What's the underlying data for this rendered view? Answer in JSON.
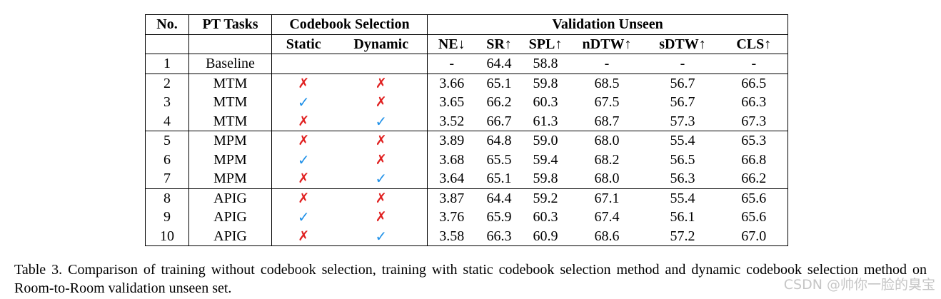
{
  "table": {
    "headers": {
      "no": "No.",
      "pt_tasks": "PT Tasks",
      "codebook_selection": "Codebook Selection",
      "validation_unseen": "Validation Unseen",
      "static": "Static",
      "dynamic": "Dynamic",
      "metrics": [
        "NE↓",
        "SR↑",
        "SPL↑",
        "nDTW↑",
        "sDTW↑",
        "CLS↑"
      ]
    },
    "rows": [
      {
        "no": "1",
        "task": "Baseline",
        "static": "",
        "dynamic": "",
        "ne": "-",
        "sr": "64.4",
        "spl": "58.8",
        "ndtw": "-",
        "sdtw": "-",
        "cls": "-"
      },
      {
        "no": "2",
        "task": "MTM",
        "static": "✗",
        "dynamic": "✗",
        "ne": "3.66",
        "sr": "65.1",
        "spl": "59.8",
        "ndtw": "68.5",
        "sdtw": "56.7",
        "cls": "66.5"
      },
      {
        "no": "3",
        "task": "MTM",
        "static": "✓",
        "dynamic": "✗",
        "ne": "3.65",
        "sr": "66.2",
        "spl": "60.3",
        "ndtw": "67.5",
        "sdtw": "56.7",
        "cls": "66.3"
      },
      {
        "no": "4",
        "task": "MTM",
        "static": "✗",
        "dynamic": "✓",
        "ne": "3.52",
        "sr": "66.7",
        "spl": "61.3",
        "ndtw": "68.7",
        "sdtw": "57.3",
        "cls": "67.3"
      },
      {
        "no": "5",
        "task": "MPM",
        "static": "✗",
        "dynamic": "✗",
        "ne": "3.89",
        "sr": "64.8",
        "spl": "59.0",
        "ndtw": "68.0",
        "sdtw": "55.4",
        "cls": "65.3"
      },
      {
        "no": "6",
        "task": "MPM",
        "static": "✓",
        "dynamic": "✗",
        "ne": "3.68",
        "sr": "65.5",
        "spl": "59.4",
        "ndtw": "68.2",
        "sdtw": "56.5",
        "cls": "66.8"
      },
      {
        "no": "7",
        "task": "MPM",
        "static": "✗",
        "dynamic": "✓",
        "ne": "3.64",
        "sr": "65.1",
        "spl": "59.8",
        "ndtw": "68.0",
        "sdtw": "56.3",
        "cls": "66.2"
      },
      {
        "no": "8",
        "task": "APIG",
        "static": "✗",
        "dynamic": "✗",
        "ne": "3.87",
        "sr": "64.4",
        "spl": "59.2",
        "ndtw": "67.1",
        "sdtw": "55.4",
        "cls": "65.6"
      },
      {
        "no": "9",
        "task": "APIG",
        "static": "✓",
        "dynamic": "✗",
        "ne": "3.76",
        "sr": "65.9",
        "spl": "60.3",
        "ndtw": "67.4",
        "sdtw": "56.1",
        "cls": "65.6"
      },
      {
        "no": "10",
        "task": "APIG",
        "static": "✗",
        "dynamic": "✓",
        "ne": "3.58",
        "sr": "66.3",
        "spl": "60.9",
        "ndtw": "68.6",
        "sdtw": "57.2",
        "cls": "67.0"
      }
    ]
  },
  "caption": "Table 3.  Comparison of training without codebook selection, training with static codebook selection method and dynamic codebook selection method on Room-to-Room validation unseen set.",
  "watermark": "CSDN @帅你一脸的臭宝",
  "colors": {
    "cross": "#e02020",
    "check": "#1e90e8"
  }
}
